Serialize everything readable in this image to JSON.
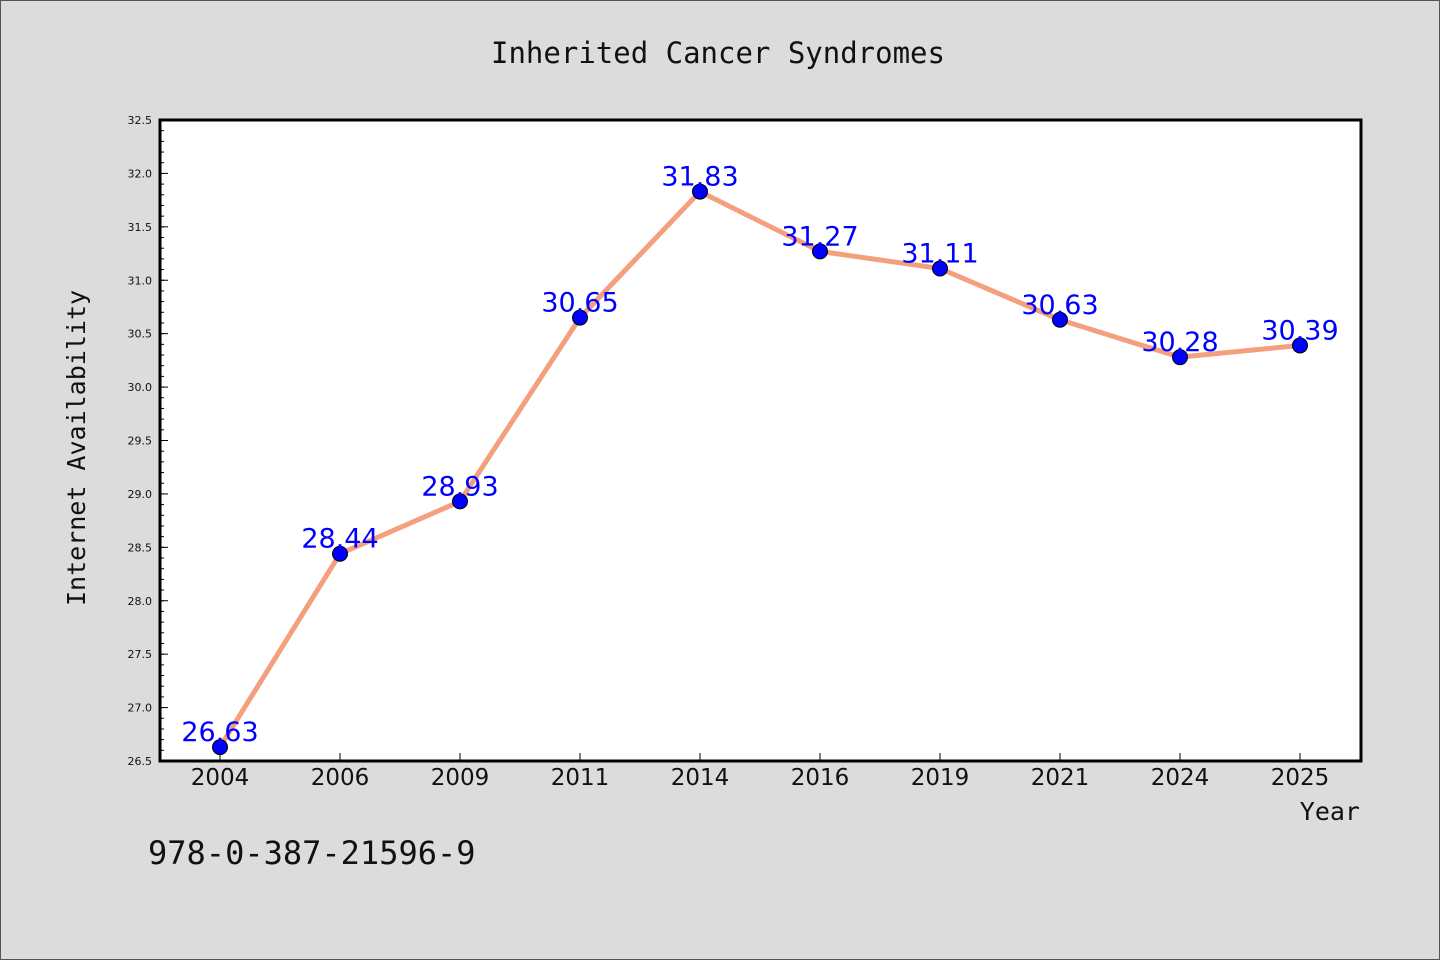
{
  "chart_data": {
    "type": "line",
    "title": "Inherited Cancer Syndromes",
    "xlabel": "Year",
    "ylabel": "Internet Availability",
    "categories": [
      "2004",
      "2006",
      "2009",
      "2011",
      "2014",
      "2016",
      "2019",
      "2021",
      "2024",
      "2025"
    ],
    "series": [
      {
        "values": [
          26.63,
          28.44,
          28.93,
          30.65,
          31.83,
          31.27,
          31.11,
          30.63,
          30.28,
          30.39
        ],
        "line_color": "#f4a07e",
        "marker_color": "#0000ff"
      }
    ],
    "value_labels": [
      "26.63",
      "28.44",
      "28.93",
      "30.65",
      "31.83",
      "31.27",
      "31.11",
      "30.63",
      "30.28",
      "30.39"
    ],
    "ylim": [
      26.5,
      32.5
    ],
    "yticks": [
      "26.5",
      "27.0",
      "27.5",
      "28.0",
      "28.5",
      "29.0",
      "29.5",
      "30.0",
      "30.5",
      "31.0",
      "31.5",
      "32.0",
      "32.5"
    ],
    "grid": false,
    "label_color": "#0000ff",
    "background": "#dcdcdc",
    "plot_background": "#ffffff"
  },
  "footer": {
    "isbn": "978-0-387-21596-9"
  }
}
